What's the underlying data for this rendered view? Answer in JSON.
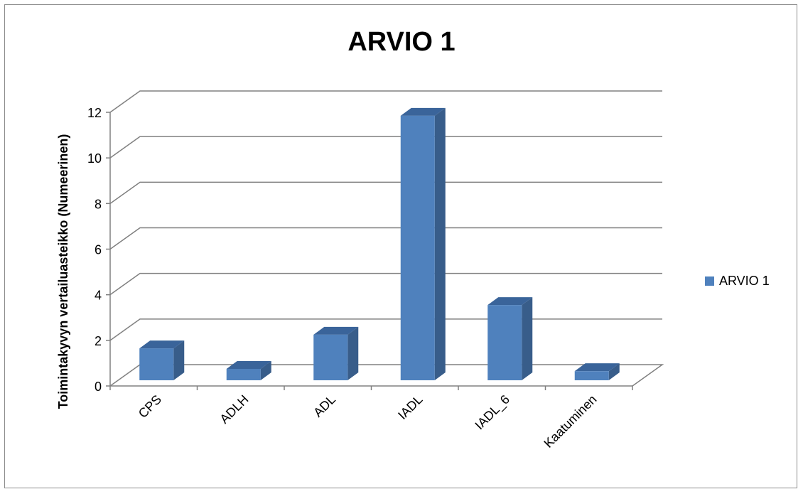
{
  "chart_data": {
    "type": "bar",
    "title": "ARVIO 1",
    "xlabel": "",
    "ylabel": "Toimintakyvyn vertailuasteikko (Numeerinen)",
    "categories": [
      "CPS",
      "ADLH",
      "ADL",
      "IADL",
      "IADL_6",
      "Kaatuminen"
    ],
    "series": [
      {
        "name": "ARVIO 1",
        "values": [
          1.4,
          0.5,
          2.0,
          11.6,
          3.3,
          0.4
        ]
      }
    ],
    "ylim": [
      0,
      12
    ],
    "yticks": [
      "0",
      "2",
      "4",
      "6",
      "8",
      "10",
      "12"
    ],
    "grid": true,
    "legend_position": "right",
    "bar_style": "3d",
    "colors": {
      "bar_front": "#4f81bd",
      "bar_side": "#385d8a",
      "bar_top": "#3a649a",
      "gridline": "#808080",
      "frame": "#8c8c8c"
    }
  }
}
